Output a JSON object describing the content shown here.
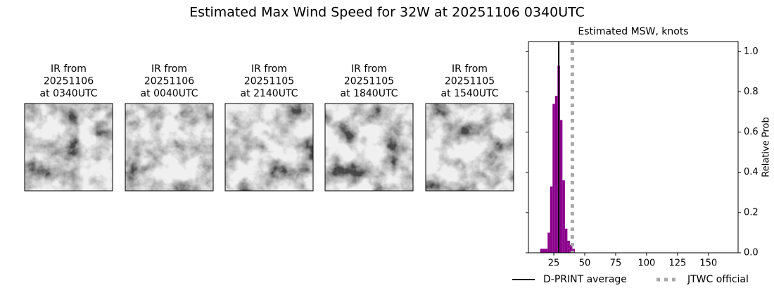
{
  "title": "Estimated Max Wind Speed for 32W at 20251106 0340UTC",
  "panels": [
    {
      "label": [
        "IR from",
        "20251106",
        "at 0340UTC"
      ]
    },
    {
      "label": [
        "IR from",
        "20251106",
        "at 0040UTC"
      ]
    },
    {
      "label": [
        "IR from",
        "20251105",
        "at 2140UTC"
      ]
    },
    {
      "label": [
        "IR from",
        "20251105",
        "at 1840UTC"
      ]
    },
    {
      "label": [
        "IR from",
        "20251105",
        "at 1540UTC"
      ]
    }
  ],
  "chart_data": {
    "type": "histogram",
    "title": "Estimated MSW, knots",
    "ylabel": "Relative Prob",
    "bins": [
      14,
      16,
      18,
      20,
      22,
      24,
      26,
      28,
      30,
      32,
      34,
      36,
      38,
      40,
      42
    ],
    "values": [
      0.02,
      0.02,
      0.02,
      0.1,
      0.33,
      0.74,
      0.78,
      0.93,
      0.66,
      0.36,
      0.12,
      0.06,
      0.04,
      0.02
    ],
    "color": "#8b008b",
    "xlim": [
      4.5,
      174
    ],
    "xticks": [
      25,
      50,
      75,
      100,
      125,
      150
    ],
    "ylim": [
      0,
      1.05
    ],
    "yticks": [
      {
        "value": 0,
        "label": "0.0"
      },
      {
        "value": 0.2,
        "label": "0.2"
      },
      {
        "value": 0.4,
        "label": "0.4"
      },
      {
        "value": 0.6,
        "label": "0.6"
      },
      {
        "value": 0.8,
        "label": "0.8"
      },
      {
        "value": 1,
        "label": "1.0"
      }
    ],
    "y_axis_side": "right",
    "reference_lines": [
      {
        "name": "D-PRINT average",
        "value": 29,
        "color": "#000000",
        "style": "solid"
      },
      {
        "name": "JTWC official",
        "value": 40,
        "color": "#a9a9a9",
        "style": "dotted"
      }
    ]
  }
}
